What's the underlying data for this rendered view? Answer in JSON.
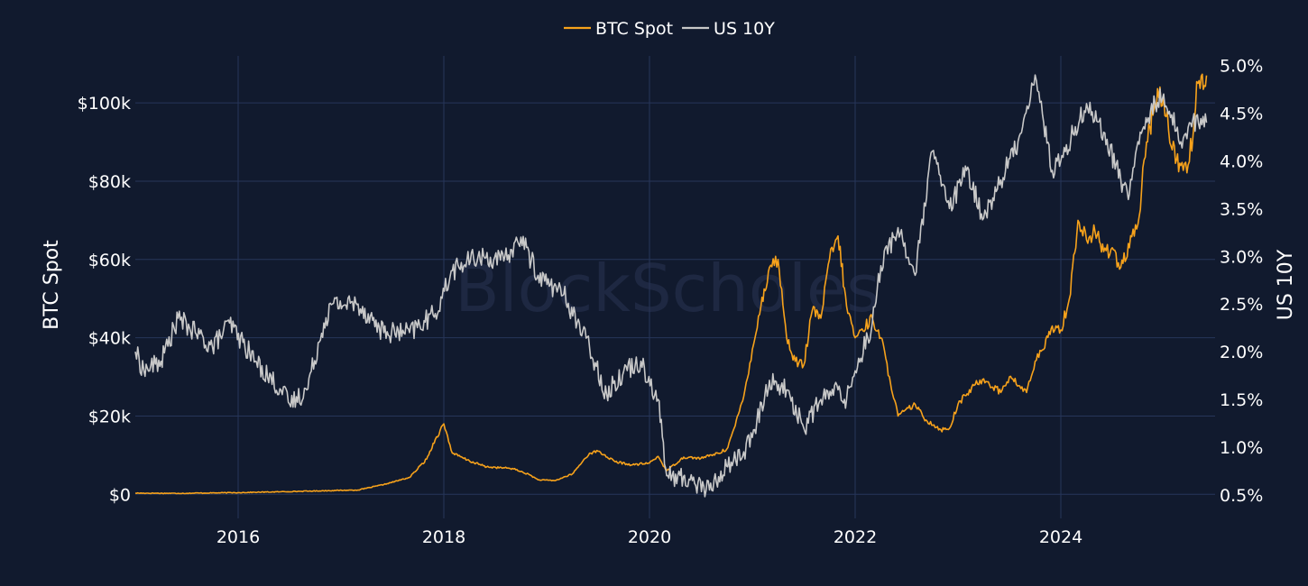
{
  "watermark": "BlockScholes",
  "colors": {
    "background": "#111a2e",
    "grid": "#27365a",
    "btc": "#f7a21b",
    "us10y": "#c8c8c8"
  },
  "chart_data": {
    "type": "line",
    "title": "",
    "legend_position": "top-center",
    "grid": true,
    "x_ticks": [
      "2016",
      "2018",
      "2020",
      "2022",
      "2024"
    ],
    "xlim": [
      "2015-01-01",
      "2025-07-01"
    ],
    "y_left": {
      "label": "BTC Spot",
      "ticks": [
        "$0",
        "$20k",
        "$40k",
        "$60k",
        "$80k",
        "$100k"
      ],
      "ylim": [
        -5000,
        112000
      ]
    },
    "y_right": {
      "label": "US 10Y",
      "ticks": [
        "0.5%",
        "1.0%",
        "1.5%",
        "2.0%",
        "2.5%",
        "3.0%",
        "3.5%",
        "4.0%",
        "4.5%",
        "5.0%"
      ],
      "ylim": [
        0.3,
        5.1
      ]
    },
    "series": [
      {
        "name": "BTC Spot",
        "axis": "left",
        "color": "#f7a21b",
        "x": [
          "2015-01",
          "2015-06",
          "2016-01",
          "2016-06",
          "2016-12",
          "2017-03",
          "2017-06",
          "2017-09",
          "2017-11",
          "2017-12",
          "2018-01",
          "2018-02",
          "2018-04",
          "2018-06",
          "2018-09",
          "2018-11",
          "2018-12",
          "2019-02",
          "2019-04",
          "2019-06",
          "2019-07",
          "2019-09",
          "2019-11",
          "2020-01",
          "2020-02",
          "2020-03",
          "2020-05",
          "2020-07",
          "2020-09",
          "2020-10",
          "2020-11",
          "2020-12",
          "2021-01",
          "2021-02",
          "2021-03",
          "2021-04",
          "2021-05",
          "2021-06",
          "2021-07",
          "2021-08",
          "2021-09",
          "2021-10",
          "2021-11",
          "2021-12",
          "2022-01",
          "2022-03",
          "2022-04",
          "2022-05",
          "2022-06",
          "2022-08",
          "2022-09",
          "2022-11",
          "2022-12",
          "2023-01",
          "2023-03",
          "2023-04",
          "2023-06",
          "2023-07",
          "2023-09",
          "2023-10",
          "2023-11",
          "2023-12",
          "2024-01",
          "2024-02",
          "2024-03",
          "2024-04",
          "2024-05",
          "2024-06",
          "2024-07",
          "2024-08",
          "2024-09",
          "2024-10",
          "2024-11",
          "2024-12",
          "2025-01",
          "2025-02",
          "2025-03",
          "2025-04",
          "2025-05",
          "2025-06"
        ],
        "values": [
          300,
          250,
          430,
          650,
          960,
          1100,
          2500,
          4300,
          9000,
          14000,
          18000,
          10500,
          8500,
          7000,
          6600,
          5000,
          3700,
          3500,
          5200,
          10500,
          11000,
          8300,
          7500,
          8000,
          9700,
          6000,
          9500,
          9200,
          10500,
          11500,
          17500,
          25000,
          37000,
          48000,
          58000,
          60000,
          40000,
          34000,
          33000,
          47000,
          45000,
          60000,
          66000,
          48000,
          40000,
          45000,
          40000,
          30000,
          20000,
          23000,
          19500,
          16500,
          16800,
          23000,
          28000,
          29500,
          26000,
          30000,
          26000,
          34000,
          37000,
          43000,
          42000,
          50000,
          70000,
          65000,
          67000,
          62000,
          63000,
          58000,
          63000,
          69000,
          90000,
          100000,
          102000,
          88000,
          84000,
          85000,
          105000,
          107000
        ]
      },
      {
        "name": "US 10Y",
        "axis": "right",
        "color": "#c8c8c8",
        "x": [
          "2015-01",
          "2015-02",
          "2015-04",
          "2015-06",
          "2015-08",
          "2015-10",
          "2015-12",
          "2016-03",
          "2016-06",
          "2016-07",
          "2016-09",
          "2016-11",
          "2016-12",
          "2017-03",
          "2017-06",
          "2017-09",
          "2017-12",
          "2018-02",
          "2018-05",
          "2018-08",
          "2018-10",
          "2018-12",
          "2019-03",
          "2019-06",
          "2019-08",
          "2019-10",
          "2019-12",
          "2020-02",
          "2020-03",
          "2020-06",
          "2020-08",
          "2020-10",
          "2020-12",
          "2021-01",
          "2021-03",
          "2021-05",
          "2021-07",
          "2021-09",
          "2021-11",
          "2021-12",
          "2022-01",
          "2022-03",
          "2022-04",
          "2022-06",
          "2022-08",
          "2022-10",
          "2022-12",
          "2023-02",
          "2023-04",
          "2023-06",
          "2023-08",
          "2023-10",
          "2023-11",
          "2023-12",
          "2024-01",
          "2024-04",
          "2024-06",
          "2024-08",
          "2024-09",
          "2024-10",
          "2024-12",
          "2025-01",
          "2025-03",
          "2025-04",
          "2025-06"
        ],
        "values": [
          2.0,
          1.8,
          1.9,
          2.35,
          2.2,
          2.05,
          2.3,
          1.9,
          1.6,
          1.45,
          1.6,
          2.3,
          2.5,
          2.5,
          2.2,
          2.2,
          2.4,
          2.85,
          3.0,
          2.95,
          3.2,
          2.8,
          2.6,
          2.05,
          1.55,
          1.8,
          1.9,
          1.5,
          0.7,
          0.65,
          0.55,
          0.8,
          0.95,
          1.1,
          1.7,
          1.6,
          1.2,
          1.5,
          1.6,
          1.5,
          1.8,
          2.3,
          2.9,
          3.3,
          2.8,
          4.1,
          3.5,
          3.9,
          3.4,
          3.8,
          4.2,
          4.9,
          4.4,
          3.9,
          4.0,
          4.6,
          4.3,
          3.8,
          3.65,
          4.2,
          4.6,
          4.7,
          4.2,
          4.4,
          4.4
        ]
      }
    ]
  }
}
